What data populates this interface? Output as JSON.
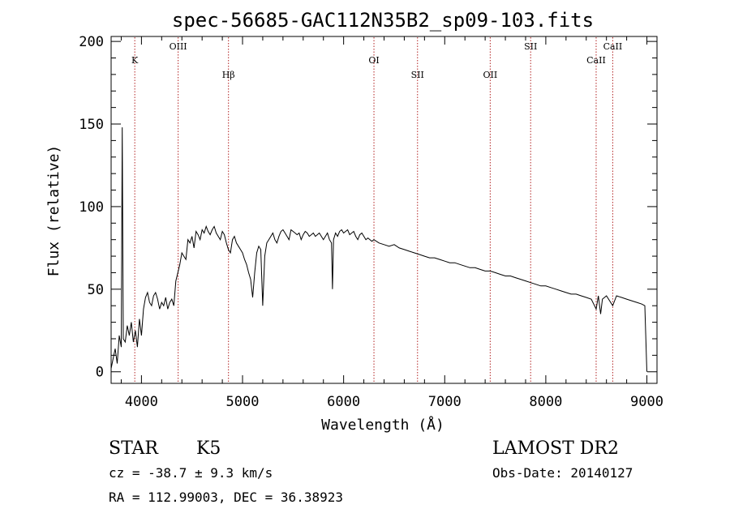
{
  "chart_data": {
    "type": "line",
    "title": "spec-56685-GAC112N35B2_sp09-103.fits",
    "xlabel": "Wavelength (Å)",
    "ylabel": "Flux (relative)",
    "xlim": [
      3700,
      9100
    ],
    "ylim": [
      -7,
      203
    ],
    "xticks": [
      4000,
      5000,
      6000,
      7000,
      8000,
      9000
    ],
    "yticks": [
      0,
      50,
      100,
      150,
      200
    ],
    "grid": false,
    "colors": {
      "spectrum": "#000000",
      "lines": "#b22222"
    },
    "spectral_lines": [
      {
        "name": "K",
        "wavelength": 3934,
        "label_row": 2
      },
      {
        "name": "OIII",
        "wavelength": 4363,
        "label_row": 1
      },
      {
        "name": "Hβ",
        "wavelength": 4861,
        "label_row": 3
      },
      {
        "name": "OI",
        "wavelength": 6300,
        "label_row": 2
      },
      {
        "name": "SII",
        "wavelength": 6731,
        "label_row": 3
      },
      {
        "name": "OII",
        "wavelength": 7450,
        "label_row": 3
      },
      {
        "name": "SII",
        "wavelength": 7850,
        "label_row": 1
      },
      {
        "name": "CaII",
        "wavelength": 8498,
        "label_row": 2
      },
      {
        "name": "CaII",
        "wavelength": 8662,
        "label_row": 1
      }
    ],
    "series": [
      {
        "x": [
          3700,
          3720,
          3740,
          3760,
          3780,
          3800,
          3810,
          3820,
          3840,
          3860,
          3880,
          3900,
          3920,
          3940,
          3960,
          3980,
          4000,
          4020,
          4040,
          4060,
          4080,
          4100,
          4120,
          4140,
          4160,
          4180,
          4200,
          4220,
          4240,
          4260,
          4280,
          4300,
          4320,
          4340,
          4360,
          4380,
          4400,
          4420,
          4440,
          4460,
          4480,
          4500,
          4520,
          4540,
          4560,
          4580,
          4600,
          4620,
          4640,
          4660,
          4680,
          4700,
          4720,
          4740,
          4760,
          4780,
          4800,
          4820,
          4840,
          4860,
          4880,
          4900,
          4920,
          4940,
          4960,
          4980,
          5000,
          5020,
          5040,
          5060,
          5080,
          5100,
          5120,
          5140,
          5160,
          5180,
          5200,
          5220,
          5240,
          5260,
          5280,
          5300,
          5320,
          5340,
          5360,
          5380,
          5400,
          5420,
          5440,
          5460,
          5480,
          5500,
          5520,
          5540,
          5560,
          5580,
          5600,
          5620,
          5640,
          5660,
          5680,
          5700,
          5720,
          5740,
          5760,
          5780,
          5800,
          5820,
          5840,
          5860,
          5880,
          5890,
          5900,
          5920,
          5940,
          5960,
          5980,
          6000,
          6020,
          6040,
          6060,
          6080,
          6100,
          6120,
          6140,
          6160,
          6180,
          6200,
          6220,
          6240,
          6260,
          6280,
          6300,
          6350,
          6400,
          6450,
          6500,
          6550,
          6600,
          6650,
          6700,
          6750,
          6800,
          6850,
          6900,
          6950,
          7000,
          7050,
          7100,
          7150,
          7200,
          7250,
          7300,
          7350,
          7400,
          7450,
          7500,
          7550,
          7600,
          7650,
          7700,
          7750,
          7800,
          7850,
          7900,
          7950,
          8000,
          8050,
          8100,
          8150,
          8200,
          8250,
          8300,
          8350,
          8400,
          8450,
          8498,
          8520,
          8542,
          8560,
          8600,
          8662,
          8700,
          8750,
          8800,
          8850,
          8900,
          8950,
          8980,
          9000
        ],
        "y": [
          2,
          8,
          14,
          5,
          22,
          15,
          148,
          20,
          18,
          28,
          22,
          30,
          18,
          25,
          15,
          32,
          22,
          38,
          45,
          48,
          42,
          40,
          46,
          48,
          44,
          38,
          42,
          40,
          45,
          38,
          42,
          44,
          40,
          55,
          60,
          65,
          72,
          70,
          68,
          80,
          78,
          82,
          75,
          85,
          83,
          80,
          86,
          84,
          88,
          85,
          83,
          86,
          88,
          84,
          82,
          80,
          85,
          83,
          78,
          74,
          72,
          80,
          82,
          78,
          76,
          74,
          72,
          68,
          65,
          60,
          56,
          45,
          60,
          72,
          76,
          74,
          40,
          70,
          78,
          80,
          82,
          84,
          80,
          78,
          82,
          85,
          86,
          84,
          82,
          80,
          86,
          85,
          84,
          83,
          84,
          80,
          83,
          85,
          84,
          82,
          83,
          84,
          82,
          83,
          84,
          82,
          80,
          82,
          84,
          80,
          78,
          50,
          80,
          84,
          82,
          85,
          86,
          84,
          85,
          86,
          83,
          84,
          85,
          82,
          80,
          83,
          84,
          82,
          80,
          81,
          80,
          79,
          80,
          78,
          77,
          76,
          77,
          75,
          74,
          73,
          72,
          71,
          70,
          69,
          69,
          68,
          67,
          66,
          66,
          65,
          64,
          63,
          63,
          62,
          61,
          61,
          60,
          59,
          58,
          58,
          57,
          56,
          55,
          54,
          53,
          52,
          52,
          51,
          50,
          49,
          48,
          47,
          47,
          46,
          45,
          44,
          38,
          46,
          35,
          44,
          46,
          40,
          46,
          45,
          44,
          43,
          42,
          41,
          40,
          0
        ]
      }
    ],
    "annotations": {
      "object_type": "STAR",
      "subclass": "K5",
      "survey": "LAMOST DR2",
      "redshift_text": "cz = -38.7 ± 9.3 km/s",
      "obs_date": "Obs-Date: 20140127",
      "coords_text": "RA = 112.99003, DEC =  36.38923"
    }
  }
}
